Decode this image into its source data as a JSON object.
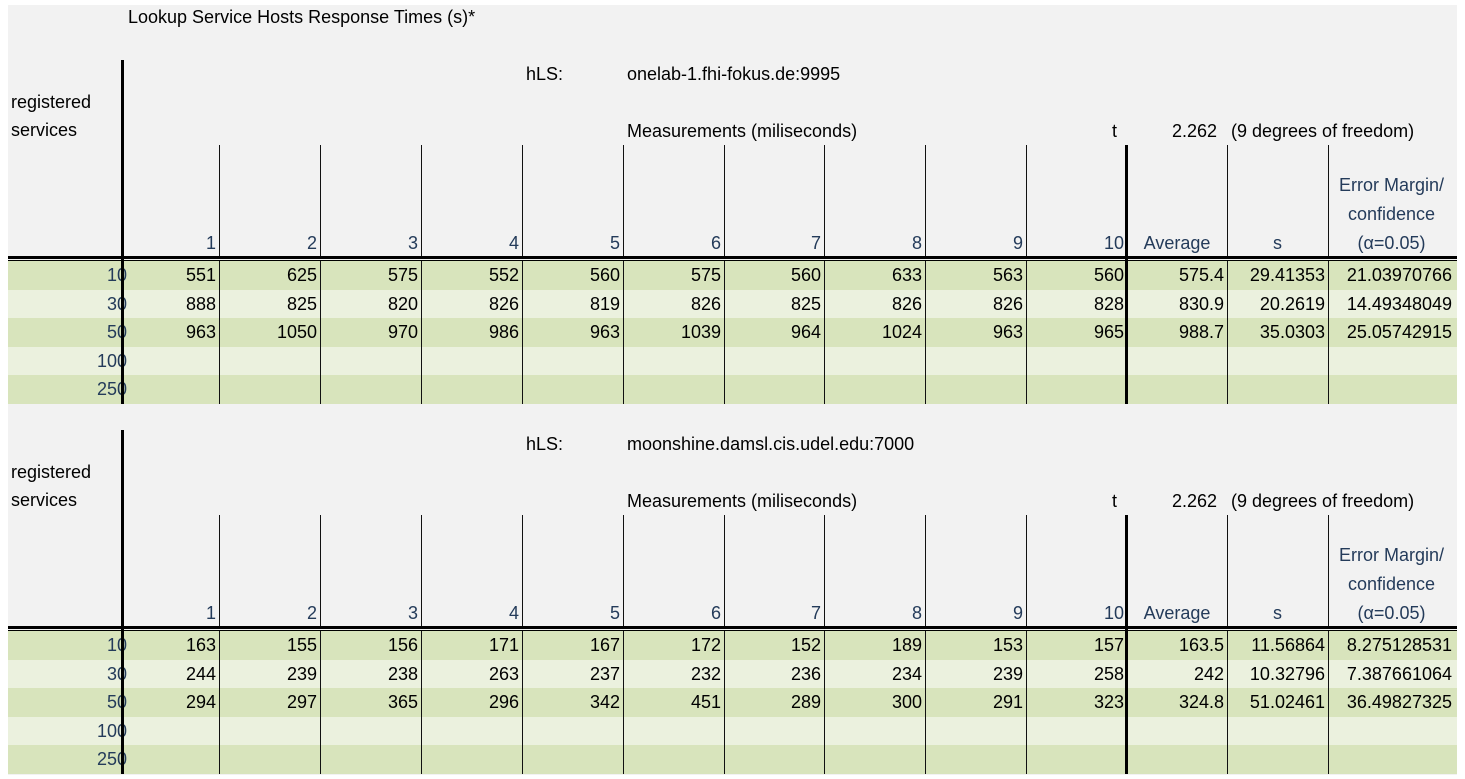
{
  "title": "Lookup Service Hosts Response Times (s)*",
  "tables": [
    {
      "hls_label": "hLS:",
      "hls_host": "onelab-1.fhi-fokus.de:9995",
      "registered_label": "registered services",
      "measurements_label": "Measurements (miliseconds)",
      "t_label": "t",
      "t_value": "2.262",
      "dof_label": "(9 degrees of freedom)",
      "columns": [
        "1",
        "2",
        "3",
        "4",
        "5",
        "6",
        "7",
        "8",
        "9",
        "10"
      ],
      "average_label": "Average",
      "s_label": "s",
      "error_label_1": "Error Margin/",
      "error_label_2": "confidence",
      "error_label_3": "(α=0.05)",
      "rows": [
        {
          "label": "10",
          "values": [
            "551",
            "625",
            "575",
            "552",
            "560",
            "575",
            "560",
            "633",
            "563",
            "560"
          ],
          "average": "575.4",
          "s": "29.41353",
          "error": "21.03970766"
        },
        {
          "label": "30",
          "values": [
            "888",
            "825",
            "820",
            "826",
            "819",
            "826",
            "825",
            "826",
            "826",
            "828"
          ],
          "average": "830.9",
          "s": "20.2619",
          "error": "14.49348049"
        },
        {
          "label": "50",
          "values": [
            "963",
            "1050",
            "970",
            "986",
            "963",
            "1039",
            "964",
            "1024",
            "963",
            "965"
          ],
          "average": "988.7",
          "s": "35.0303",
          "error": "25.05742915"
        },
        {
          "label": "100",
          "values": [
            "",
            "",
            "",
            "",
            "",
            "",
            "",
            "",
            "",
            ""
          ],
          "average": "",
          "s": "",
          "error": ""
        },
        {
          "label": "250",
          "values": [
            "",
            "",
            "",
            "",
            "",
            "",
            "",
            "",
            "",
            ""
          ],
          "average": "",
          "s": "",
          "error": ""
        }
      ]
    },
    {
      "hls_label": "hLS:",
      "hls_host": "moonshine.damsl.cis.udel.edu:7000",
      "registered_label": "registered services",
      "measurements_label": "Measurements (miliseconds)",
      "t_label": "t",
      "t_value": "2.262",
      "dof_label": "(9 degrees of freedom)",
      "columns": [
        "1",
        "2",
        "3",
        "4",
        "5",
        "6",
        "7",
        "8",
        "9",
        "10"
      ],
      "average_label": "Average",
      "s_label": "s",
      "error_label_1": "Error Margin/",
      "error_label_2": "confidence",
      "error_label_3": "(α=0.05)",
      "rows": [
        {
          "label": "10",
          "values": [
            "163",
            "155",
            "156",
            "171",
            "167",
            "172",
            "152",
            "189",
            "153",
            "157"
          ],
          "average": "163.5",
          "s": "11.56864",
          "error": "8.275128531"
        },
        {
          "label": "30",
          "values": [
            "244",
            "239",
            "238",
            "263",
            "237",
            "232",
            "236",
            "234",
            "239",
            "258"
          ],
          "average": "242",
          "s": "10.32796",
          "error": "7.387661064"
        },
        {
          "label": "50",
          "values": [
            "294",
            "297",
            "365",
            "296",
            "342",
            "451",
            "289",
            "300",
            "291",
            "323"
          ],
          "average": "324.8",
          "s": "51.02461",
          "error": "36.49827325"
        },
        {
          "label": "100",
          "values": [
            "",
            "",
            "",
            "",
            "",
            "",
            "",
            "",
            "",
            ""
          ],
          "average": "",
          "s": "",
          "error": ""
        },
        {
          "label": "250",
          "values": [
            "",
            "",
            "",
            "",
            "",
            "",
            "",
            "",
            "",
            ""
          ],
          "average": "",
          "s": "",
          "error": ""
        }
      ]
    }
  ]
}
